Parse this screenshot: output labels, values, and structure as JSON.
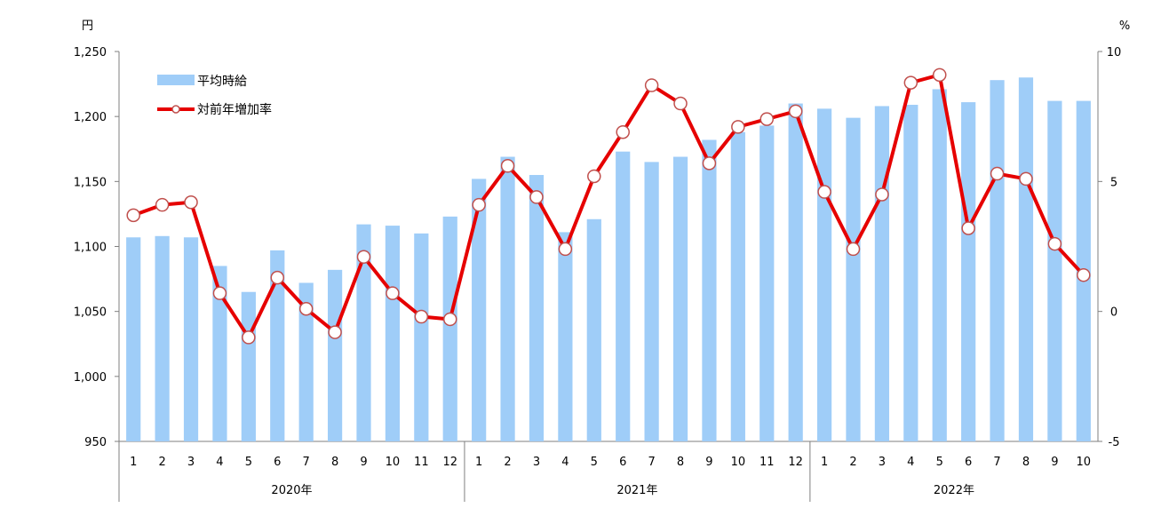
{
  "chart_data": {
    "type": "bar+line",
    "left_axis": {
      "unit": "円",
      "ylim": [
        950,
        1250
      ],
      "ticks": [
        "950",
        "1,000",
        "1,050",
        "1,100",
        "1,150",
        "1,200",
        "1,250"
      ]
    },
    "right_axis": {
      "unit": "%",
      "ylim": [
        -5,
        10
      ],
      "ticks": [
        "-5",
        "0",
        "5",
        "10"
      ]
    },
    "legend_position": "top-left",
    "colors": {
      "bar": "#9fcdf8",
      "line": "#e60000",
      "marker_fill": "#ffffff",
      "marker_stroke": "#c0504d"
    },
    "groups": [
      {
        "label": "2020年",
        "months": [
          "1",
          "2",
          "3",
          "4",
          "5",
          "6",
          "7",
          "8",
          "9",
          "10",
          "11",
          "12"
        ]
      },
      {
        "label": "2021年",
        "months": [
          "1",
          "2",
          "3",
          "4",
          "5",
          "6",
          "7",
          "8",
          "9",
          "10",
          "11",
          "12"
        ]
      },
      {
        "label": "2022年",
        "months": [
          "1",
          "2",
          "3",
          "4",
          "5",
          "6",
          "7",
          "8",
          "9",
          "10"
        ]
      }
    ],
    "series": [
      {
        "name": "平均時給",
        "type": "bar",
        "axis": "left",
        "values": [
          1107,
          1108,
          1107,
          1085,
          1065,
          1097,
          1072,
          1082,
          1117,
          1116,
          1110,
          1123,
          1152,
          1169,
          1155,
          1111,
          1121,
          1173,
          1165,
          1169,
          1182,
          1188,
          1193,
          1210,
          1206,
          1199,
          1208,
          1209,
          1221,
          1211,
          1228,
          1230,
          1212,
          1212
        ]
      },
      {
        "name": "対前年増加率",
        "type": "line",
        "axis": "right",
        "values": [
          3.7,
          4.1,
          4.2,
          0.7,
          -1.0,
          1.3,
          0.1,
          -0.8,
          2.1,
          0.7,
          -0.2,
          -0.3,
          4.1,
          5.6,
          4.4,
          2.4,
          5.2,
          6.9,
          8.7,
          8.0,
          5.7,
          7.1,
          7.4,
          7.7,
          4.6,
          2.4,
          4.5,
          8.8,
          9.1,
          3.2,
          5.3,
          5.1,
          2.6,
          1.4
        ]
      }
    ]
  }
}
